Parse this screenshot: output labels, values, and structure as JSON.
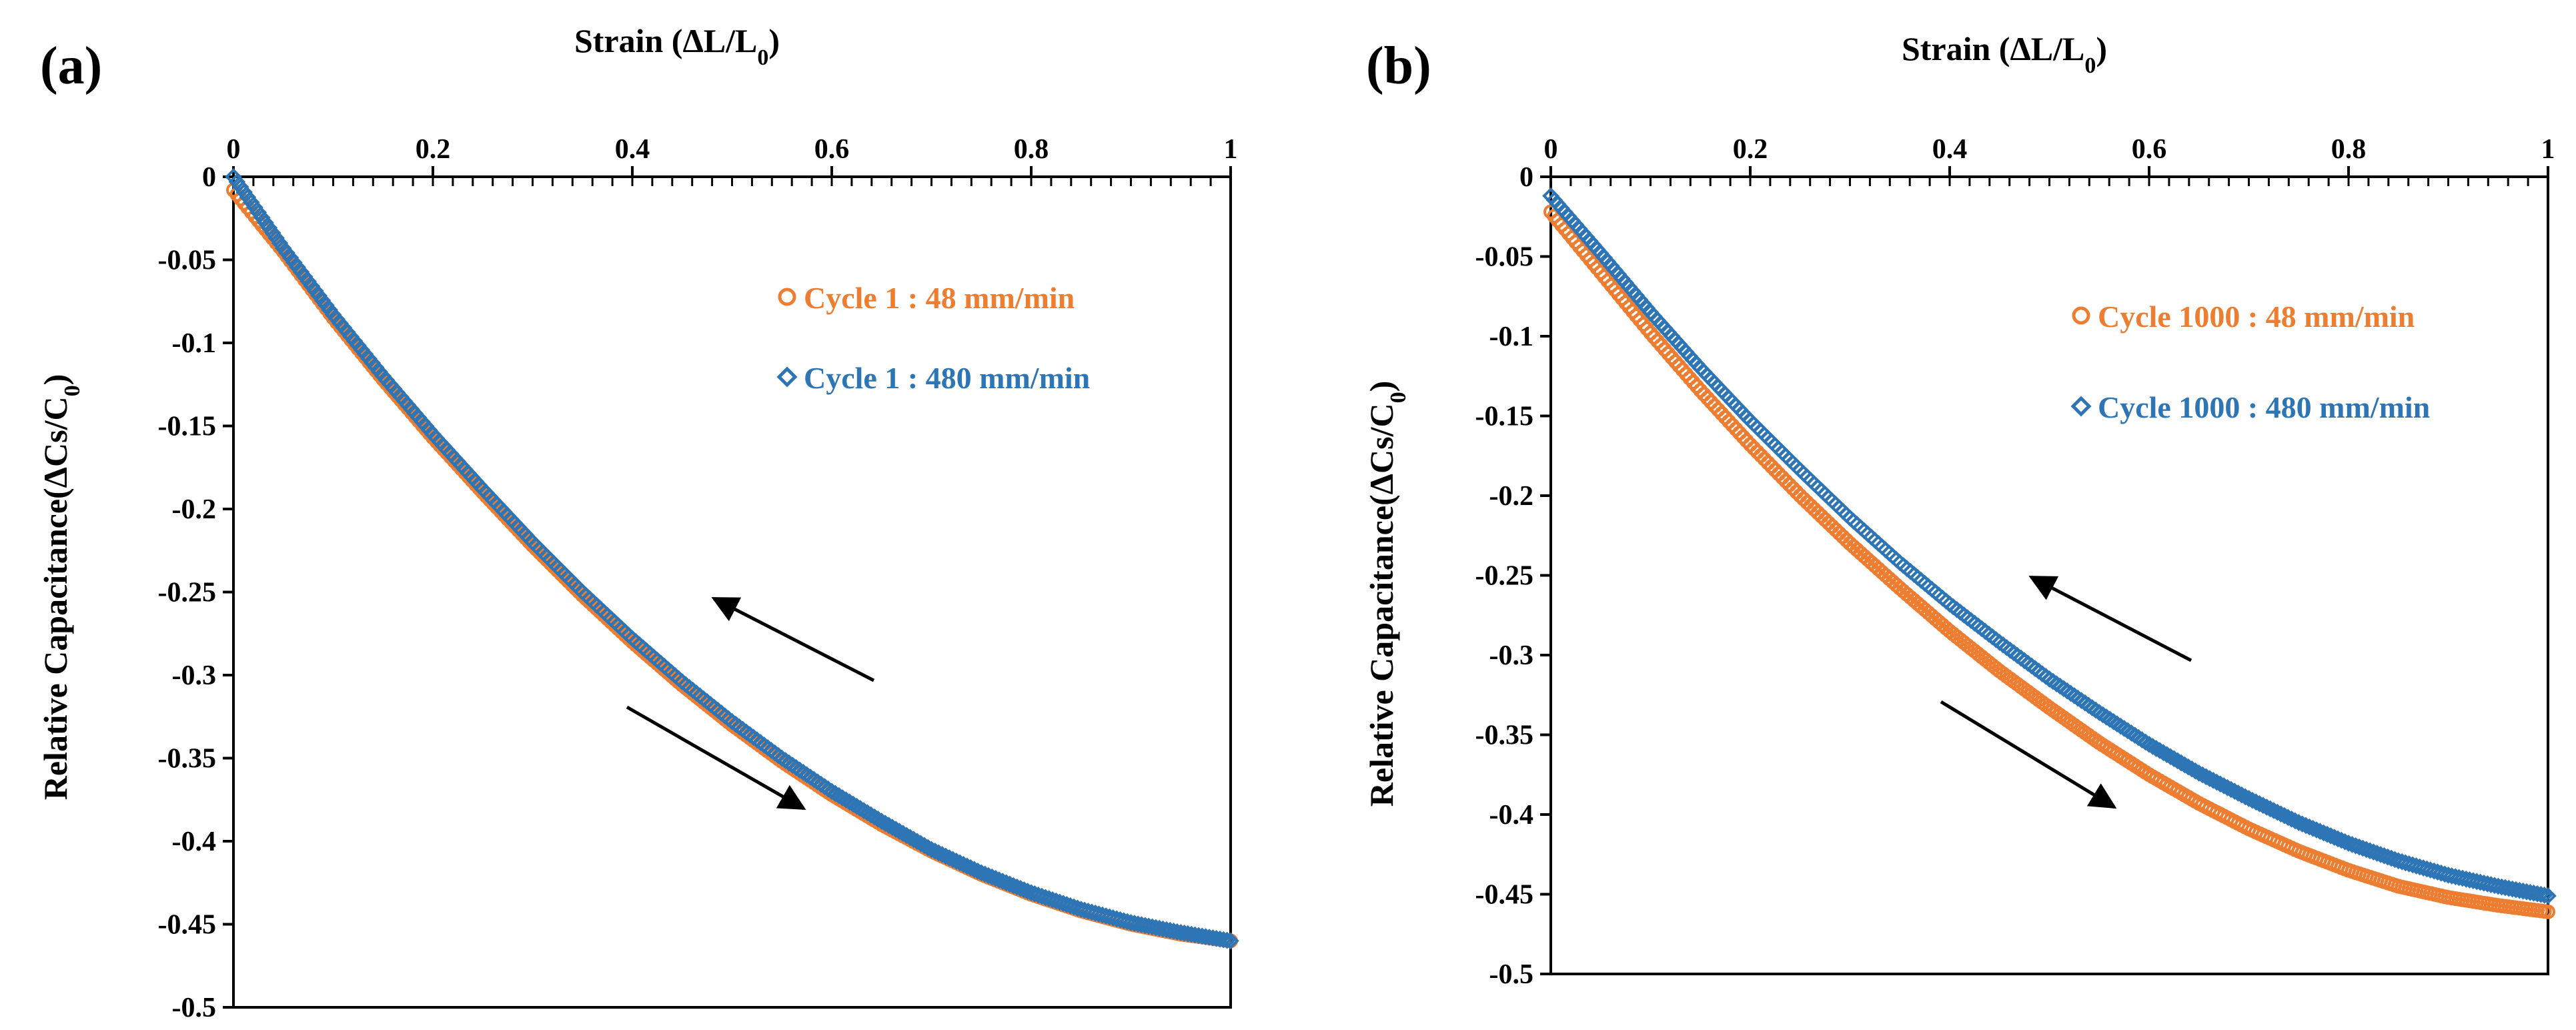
{
  "colors": {
    "cycle_orange": "#ED7D31",
    "cycle_blue": "#2E75B6",
    "axis": "#000000"
  },
  "chart_data": [
    {
      "type": "scatter",
      "panel_label": "(a)",
      "x_axis_title": {
        "main": "Strain (ΔL/L",
        "sub": "0",
        "close": ")"
      },
      "y_axis_title": {
        "main": "Relative Capacitance(ΔCs/C",
        "sub": "0",
        "close": ")"
      },
      "xlim": [
        0,
        1
      ],
      "ylim": [
        -0.5,
        0
      ],
      "x_ticks": [
        0,
        0.2,
        0.4,
        0.6,
        0.8,
        1
      ],
      "x_tick_labels": [
        "0",
        "0.2",
        "0.4",
        "0.6",
        "0.8",
        "1"
      ],
      "y_ticks": [
        0,
        -0.05,
        -0.1,
        -0.15,
        -0.2,
        -0.25,
        -0.3,
        -0.35,
        -0.4,
        -0.45,
        -0.5
      ],
      "y_tick_labels": [
        "0",
        "-0.05",
        "-0.1",
        "-0.15",
        "-0.2",
        "-0.25",
        "-0.3",
        "-0.35",
        "-0.4",
        "-0.45",
        "-0.5"
      ],
      "annotations": [
        "arrow: unloading (strain decreasing)",
        "arrow: loading (strain increasing)"
      ],
      "series": [
        {
          "name": "Cycle 1 : 48 mm/min",
          "marker": "circle",
          "color": "#ED7D31",
          "x": [
            0,
            0.05,
            0.1,
            0.15,
            0.2,
            0.25,
            0.3,
            0.35,
            0.4,
            0.45,
            0.5,
            0.55,
            0.6,
            0.65,
            0.7,
            0.75,
            0.8,
            0.85,
            0.9,
            0.95,
            1
          ],
          "y": [
            -0.008,
            -0.045,
            -0.085,
            -0.122,
            -0.157,
            -0.19,
            -0.222,
            -0.252,
            -0.28,
            -0.306,
            -0.33,
            -0.352,
            -0.372,
            -0.39,
            -0.406,
            -0.42,
            -0.432,
            -0.442,
            -0.45,
            -0.456,
            -0.46
          ]
        },
        {
          "name": "Cycle 1 : 480 mm/min",
          "marker": "diamond",
          "color": "#2E75B6",
          "x": [
            0,
            0.05,
            0.1,
            0.15,
            0.2,
            0.25,
            0.3,
            0.35,
            0.4,
            0.45,
            0.5,
            0.55,
            0.6,
            0.65,
            0.7,
            0.75,
            0.8,
            0.85,
            0.9,
            0.95,
            1
          ],
          "y": [
            0,
            -0.043,
            -0.083,
            -0.12,
            -0.155,
            -0.188,
            -0.22,
            -0.25,
            -0.278,
            -0.304,
            -0.328,
            -0.35,
            -0.37,
            -0.388,
            -0.405,
            -0.419,
            -0.431,
            -0.441,
            -0.449,
            -0.455,
            -0.46
          ]
        }
      ]
    },
    {
      "type": "scatter",
      "panel_label": "(b)",
      "x_axis_title": {
        "main": "Strain (ΔL/L",
        "sub": "0",
        "close": ")"
      },
      "y_axis_title": {
        "main": "Relative Capacitance(ΔCs/C",
        "sub": "0",
        "close": ")"
      },
      "xlim": [
        0,
        1
      ],
      "ylim": [
        -0.5,
        0
      ],
      "x_ticks": [
        0,
        0.2,
        0.4,
        0.6,
        0.8,
        1
      ],
      "x_tick_labels": [
        "0",
        "0.2",
        "0.4",
        "0.6",
        "0.8",
        "1"
      ],
      "y_ticks": [
        0,
        -0.05,
        -0.1,
        -0.15,
        -0.2,
        -0.25,
        -0.3,
        -0.35,
        -0.4,
        -0.45,
        -0.5
      ],
      "y_tick_labels": [
        "0",
        "-0.05",
        "-0.1",
        "-0.15",
        "-0.2",
        "-0.25",
        "-0.3",
        "-0.35",
        "-0.4",
        "-0.45",
        "-0.5"
      ],
      "annotations": [
        "arrow: unloading (strain decreasing)",
        "arrow: loading (strain increasing)"
      ],
      "series": [
        {
          "name": "Cycle 1000 : 48 mm/min",
          "marker": "circle",
          "color": "#ED7D31",
          "x": [
            0,
            0.05,
            0.1,
            0.15,
            0.2,
            0.25,
            0.3,
            0.35,
            0.4,
            0.45,
            0.5,
            0.55,
            0.6,
            0.65,
            0.7,
            0.75,
            0.8,
            0.85,
            0.9,
            0.95,
            1
          ],
          "y": [
            -0.022,
            -0.06,
            -0.098,
            -0.134,
            -0.168,
            -0.2,
            -0.23,
            -0.258,
            -0.285,
            -0.31,
            -0.333,
            -0.355,
            -0.375,
            -0.393,
            -0.409,
            -0.423,
            -0.435,
            -0.445,
            -0.452,
            -0.457,
            -0.461
          ]
        },
        {
          "name": "Cycle 1000 : 480 mm/min",
          "marker": "diamond",
          "color": "#2E75B6",
          "x": [
            0,
            0.05,
            0.1,
            0.15,
            0.2,
            0.25,
            0.3,
            0.35,
            0.4,
            0.45,
            0.5,
            0.55,
            0.6,
            0.65,
            0.7,
            0.75,
            0.8,
            0.85,
            0.9,
            0.95,
            1
          ],
          "y": [
            -0.012,
            -0.048,
            -0.085,
            -0.12,
            -0.153,
            -0.184,
            -0.214,
            -0.242,
            -0.268,
            -0.292,
            -0.315,
            -0.336,
            -0.356,
            -0.374,
            -0.39,
            -0.405,
            -0.418,
            -0.429,
            -0.438,
            -0.445,
            -0.451
          ]
        }
      ]
    }
  ]
}
